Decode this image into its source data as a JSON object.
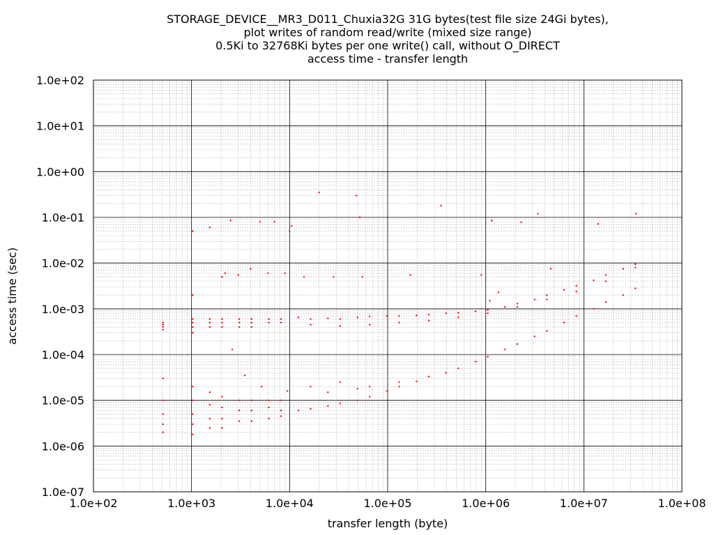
{
  "chart_data": {
    "type": "scatter",
    "title": [
      "STORAGE_DEVICE__MR3_D011_Chuxia32G 31G bytes(test file size 24Gi bytes),",
      "plot writes of random read/write (mixed size range)",
      "0.5Ki to 32768Ki bytes per one write() call, without O_DIRECT",
      "access time - transfer length"
    ],
    "xlabel": "transfer length (byte)",
    "ylabel": "access time (sec)",
    "x_scale": "log",
    "y_scale": "log",
    "xlim": [
      100,
      100000000
    ],
    "ylim": [
      1e-07,
      100
    ],
    "x_ticks": [
      "1.0e+02",
      "1.0e+03",
      "1.0e+04",
      "1.0e+05",
      "1.0e+06",
      "1.0e+07",
      "1.0e+08"
    ],
    "y_ticks": [
      "1.0e+02",
      "1.0e+01",
      "1.0e+00",
      "1.0e-01",
      "1.0e-02",
      "1.0e-03",
      "1.0e-04",
      "1.0e-05",
      "1.0e-06",
      "1.0e-07"
    ],
    "grid": true,
    "point_color": "#ff0000",
    "series": [
      {
        "points": [
          [
            512,
            0.0005
          ],
          [
            512,
            0.00045
          ],
          [
            512,
            0.0004
          ],
          [
            512,
            0.00035
          ],
          [
            1024,
            0.002
          ],
          [
            1024,
            0.0006
          ],
          [
            1024,
            0.0005
          ],
          [
            1024,
            0.0004
          ],
          [
            1024,
            0.0003
          ],
          [
            1536,
            0.0006
          ],
          [
            1536,
            0.0005
          ],
          [
            1536,
            0.0004
          ],
          [
            2048,
            0.0006
          ],
          [
            2048,
            0.0005
          ],
          [
            2048,
            0.0004
          ],
          [
            2048,
            0.005
          ],
          [
            3072,
            0.0006
          ],
          [
            3072,
            0.0005
          ],
          [
            3072,
            0.0004
          ],
          [
            4096,
            0.0006
          ],
          [
            4096,
            0.0005
          ],
          [
            4096,
            0.0004
          ],
          [
            6144,
            0.0006
          ],
          [
            6144,
            0.0005
          ],
          [
            8192,
            0.0006
          ],
          [
            8192,
            0.0005
          ],
          [
            12288,
            0.00065
          ],
          [
            16384,
            0.0006
          ],
          [
            24576,
            0.00062
          ],
          [
            32768,
            0.0006
          ],
          [
            49152,
            0.00065
          ],
          [
            65536,
            0.00068
          ],
          [
            98304,
            0.0007
          ],
          [
            131072,
            0.0007
          ],
          [
            196608,
            0.00072
          ],
          [
            262144,
            0.00075
          ],
          [
            393216,
            0.0008
          ],
          [
            524288,
            0.00082
          ],
          [
            786432,
            0.00088
          ],
          [
            1048576,
            0.00095
          ],
          [
            1572864,
            0.0011
          ],
          [
            2097152,
            0.0013
          ],
          [
            3145728,
            0.0016
          ],
          [
            4194304,
            0.002
          ],
          [
            6291456,
            0.0026
          ],
          [
            8388608,
            0.0032
          ],
          [
            12582912,
            0.0042
          ],
          [
            16777216,
            0.0055
          ],
          [
            25165824,
            0.0075
          ],
          [
            33554432,
            0.0095
          ],
          [
            16384,
            0.00045
          ],
          [
            32768,
            0.00042
          ],
          [
            65536,
            0.00045
          ],
          [
            131072,
            0.0005
          ],
          [
            262144,
            0.00055
          ],
          [
            524288,
            0.00065
          ],
          [
            1048576,
            0.0008
          ],
          [
            2097152,
            0.0011
          ],
          [
            4194304,
            0.0016
          ],
          [
            8388608,
            0.0024
          ],
          [
            16777216,
            0.004
          ],
          [
            33554432,
            0.008
          ],
          [
            512,
            3e-05
          ],
          [
            512,
            1e-05
          ],
          [
            512,
            5e-06
          ],
          [
            512,
            3e-06
          ],
          [
            512,
            2e-06
          ],
          [
            1024,
            2e-05
          ],
          [
            1024,
            1e-05
          ],
          [
            1024,
            5e-06
          ],
          [
            1024,
            3e-06
          ],
          [
            1024,
            1.8e-06
          ],
          [
            1536,
            1.5e-05
          ],
          [
            1536,
            8e-06
          ],
          [
            1536,
            4e-06
          ],
          [
            1536,
            2.5e-06
          ],
          [
            2048,
            1.2e-05
          ],
          [
            2048,
            7e-06
          ],
          [
            2048,
            4e-06
          ],
          [
            2048,
            2.5e-06
          ],
          [
            3072,
            1e-05
          ],
          [
            3072,
            6e-06
          ],
          [
            3072,
            3.5e-06
          ],
          [
            4096,
            1e-05
          ],
          [
            4096,
            6e-06
          ],
          [
            4096,
            3.5e-06
          ],
          [
            6144,
            1e-05
          ],
          [
            6144,
            7e-06
          ],
          [
            6144,
            4e-06
          ],
          [
            8192,
            1e-05
          ],
          [
            8192,
            6e-06
          ],
          [
            8192,
            4.5e-06
          ],
          [
            12288,
            6e-06
          ],
          [
            16384,
            6.5e-06
          ],
          [
            24576,
            7.5e-06
          ],
          [
            32768,
            8.5e-06
          ],
          [
            49152,
            1e-05
          ],
          [
            65536,
            1.2e-05
          ],
          [
            98304,
            1.6e-05
          ],
          [
            131072,
            2e-05
          ],
          [
            196608,
            2.6e-05
          ],
          [
            262144,
            3.3e-05
          ],
          [
            393216,
            4e-05
          ],
          [
            524288,
            5e-05
          ],
          [
            786432,
            7e-05
          ],
          [
            1048576,
            9e-05
          ],
          [
            1572864,
            0.00013
          ],
          [
            2097152,
            0.00017
          ],
          [
            3145728,
            0.00025
          ],
          [
            4194304,
            0.00033
          ],
          [
            6291456,
            0.0005
          ],
          [
            8388608,
            0.0007
          ],
          [
            12582912,
            0.001
          ],
          [
            16777216,
            0.0014
          ],
          [
            25165824,
            0.002
          ],
          [
            33554432,
            0.0028
          ],
          [
            16384,
            2e-05
          ],
          [
            32768,
            2.5e-05
          ],
          [
            65536,
            2e-05
          ],
          [
            131072,
            2.5e-05
          ],
          [
            24576,
            1.5e-05
          ],
          [
            49152,
            1.8e-05
          ],
          [
            1024,
            0.05
          ],
          [
            1536,
            0.06
          ],
          [
            2500,
            0.085
          ],
          [
            5000,
            0.08
          ],
          [
            7000,
            0.08
          ],
          [
            10000,
            0.05
          ],
          [
            10500,
            0.065
          ],
          [
            20000,
            0.35
          ],
          [
            48000,
            0.3
          ],
          [
            52000,
            0.1
          ],
          [
            350000,
            0.18
          ],
          [
            1150000,
            0.085
          ],
          [
            2300000,
            0.078
          ],
          [
            3400000,
            0.12
          ],
          [
            14000000,
            0.072
          ],
          [
            34000000,
            0.12
          ],
          [
            2200,
            0.006
          ],
          [
            3000,
            0.0055
          ],
          [
            4000,
            0.0075
          ],
          [
            6000,
            0.006
          ],
          [
            9000,
            0.006
          ],
          [
            14000,
            0.005
          ],
          [
            28000,
            0.005
          ],
          [
            55000,
            0.005
          ],
          [
            170000,
            0.0055
          ],
          [
            900000,
            0.0055
          ],
          [
            4600000,
            0.0075
          ],
          [
            1100000,
            0.0015
          ],
          [
            1350000,
            0.0023
          ],
          [
            2600,
            0.00013
          ],
          [
            3500,
            3.5e-05
          ],
          [
            5200,
            2e-05
          ],
          [
            9500,
            1.6e-05
          ]
        ]
      }
    ]
  }
}
